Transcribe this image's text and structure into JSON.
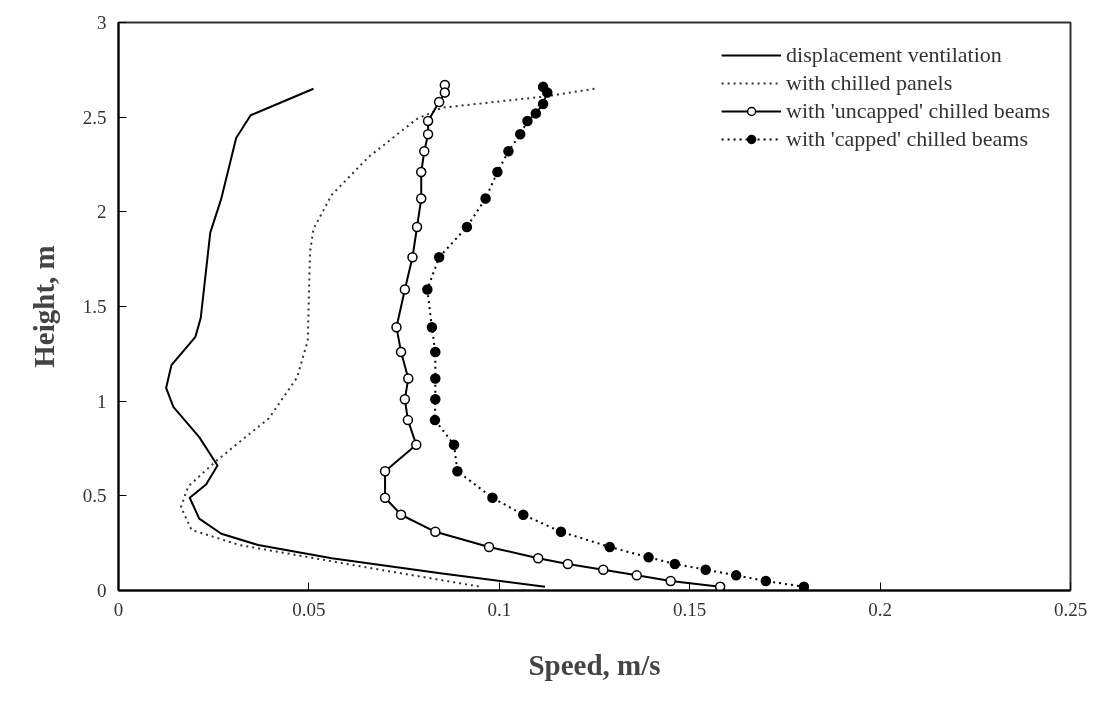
{
  "chart_data": {
    "type": "line",
    "xlabel": "Speed, m/s",
    "ylabel": "Height, m",
    "xlim": [
      0,
      0.25
    ],
    "ylim": [
      0,
      3
    ],
    "xticks": [
      0,
      0.05,
      0.1,
      0.15,
      0.2,
      0.25
    ],
    "yticks": [
      0,
      0.5,
      1,
      1.5,
      2,
      2.5,
      3
    ],
    "grid": false,
    "legend": "top right",
    "series": [
      {
        "name": "displacement ventilation",
        "color": "#000000",
        "line_style": "solid",
        "marker": "none",
        "x": [
          0.0512,
          0.0347,
          0.0309,
          0.027,
          0.0241,
          0.0216,
          0.0202,
          0.0139,
          0.0125,
          0.0144,
          0.0212,
          0.026,
          0.023,
          0.0187,
          0.0212,
          0.027,
          0.0367,
          0.056,
          0.085,
          0.112
        ],
        "values": [
          2.65,
          2.51,
          2.39,
          2.07,
          1.89,
          1.44,
          1.34,
          1.19,
          1.07,
          0.97,
          0.81,
          0.66,
          0.56,
          0.49,
          0.38,
          0.3,
          0.24,
          0.17,
          0.09,
          0.02
        ]
      },
      {
        "name": "with chilled panels",
        "color": "#333333",
        "line_style": "dotted",
        "marker": "none",
        "x": [
          0.125,
          0.1123,
          0.085,
          0.0783,
          0.0657,
          0.056,
          0.0512,
          0.0503,
          0.0497,
          0.0469,
          0.0395,
          0.026,
          0.0183,
          0.0164,
          0.0192,
          0.0318,
          0.0657,
          0.095
        ],
        "values": [
          2.65,
          2.61,
          2.55,
          2.49,
          2.29,
          2.09,
          1.91,
          1.79,
          1.32,
          1.125,
          0.91,
          0.69,
          0.55,
          0.44,
          0.32,
          0.24,
          0.12,
          0.02
        ]
      },
      {
        "name": "with 'uncapped' chilled beams",
        "color": "#000000",
        "line_style": "solid",
        "marker": "circle",
        "x": [
          0.0857,
          0.0857,
          0.0842,
          0.0813,
          0.0813,
          0.0803,
          0.0795,
          0.0795,
          0.0784,
          0.0772,
          0.0752,
          0.073,
          0.0742,
          0.0761,
          0.0752,
          0.076,
          0.0782,
          0.07,
          0.07,
          0.0742,
          0.0832,
          0.0973,
          0.1102,
          0.118,
          0.1273,
          0.1361,
          0.145,
          0.158
        ],
        "values": [
          2.67,
          2.63,
          2.58,
          2.48,
          2.41,
          2.32,
          2.21,
          2.07,
          1.92,
          1.76,
          1.59,
          1.39,
          1.26,
          1.12,
          1.01,
          0.9,
          0.77,
          0.63,
          0.49,
          0.4,
          0.31,
          0.23,
          0.17,
          0.14,
          0.11,
          0.08,
          0.05,
          0.02
        ]
      },
      {
        "name": "with 'capped' chilled beams",
        "color": "#000000",
        "line_style": "dotted",
        "marker": "circle",
        "x": [
          0.1115,
          0.1126,
          0.1115,
          0.1096,
          0.1074,
          0.1055,
          0.1024,
          0.0995,
          0.0964,
          0.0915,
          0.0842,
          0.0811,
          0.0823,
          0.0832,
          0.0832,
          0.0832,
          0.0831,
          0.0881,
          0.089,
          0.0982,
          0.1063,
          0.1162,
          0.129,
          0.1392,
          0.1461,
          0.1542,
          0.1622,
          0.17,
          0.18
        ],
        "values": [
          2.66,
          2.63,
          2.57,
          2.52,
          2.48,
          2.41,
          2.32,
          2.21,
          2.07,
          1.92,
          1.76,
          1.59,
          1.39,
          1.26,
          1.12,
          1.01,
          0.9,
          0.77,
          0.63,
          0.49,
          0.4,
          0.31,
          0.23,
          0.175,
          0.14,
          0.11,
          0.08,
          0.05,
          0.02
        ]
      }
    ]
  }
}
